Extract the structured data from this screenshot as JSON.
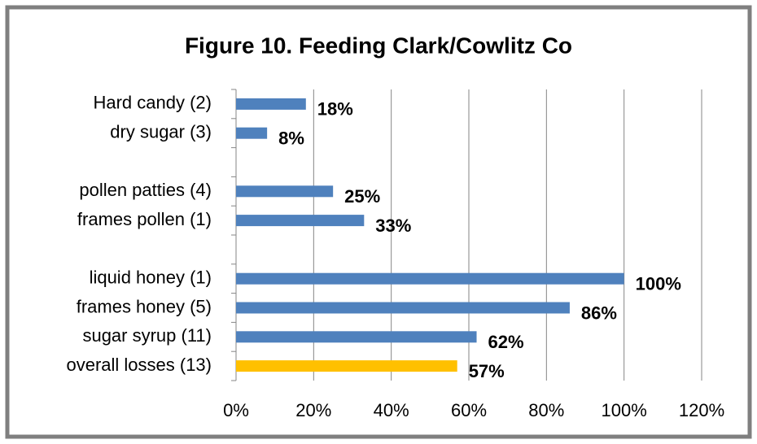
{
  "chart_data": {
    "type": "barh",
    "title": "Figure 10.  Feeding Clark/Cowlitz Co",
    "categories": [
      "Hard candy (2)",
      "dry sugar (3)",
      null,
      "pollen patties (4)",
      "frames pollen (1)",
      null,
      "liquid honey (1)",
      "frames honey (5)",
      "sugar syrup (11)",
      "overall losses (13)"
    ],
    "values": [
      18,
      8,
      null,
      25,
      33,
      null,
      100,
      86,
      62,
      57
    ],
    "value_labels": [
      "18%",
      "8%",
      null,
      "25%",
      "33%",
      null,
      "100%",
      "86%",
      "62%",
      "57%"
    ],
    "colors": [
      "#4f81bd",
      "#4f81bd",
      null,
      "#4f81bd",
      "#4f81bd",
      null,
      "#4f81bd",
      "#4f81bd",
      "#4f81bd",
      "#ffc000"
    ],
    "xlim": [
      0,
      120
    ],
    "xticks": [
      {
        "value": 0,
        "label": "0%"
      },
      {
        "value": 20,
        "label": "20%"
      },
      {
        "value": 40,
        "label": "40%"
      },
      {
        "value": 60,
        "label": "60%"
      },
      {
        "value": 80,
        "label": "80%"
      },
      {
        "value": 100,
        "label": "100%"
      },
      {
        "value": 120,
        "label": "120%"
      }
    ],
    "grid": true
  }
}
